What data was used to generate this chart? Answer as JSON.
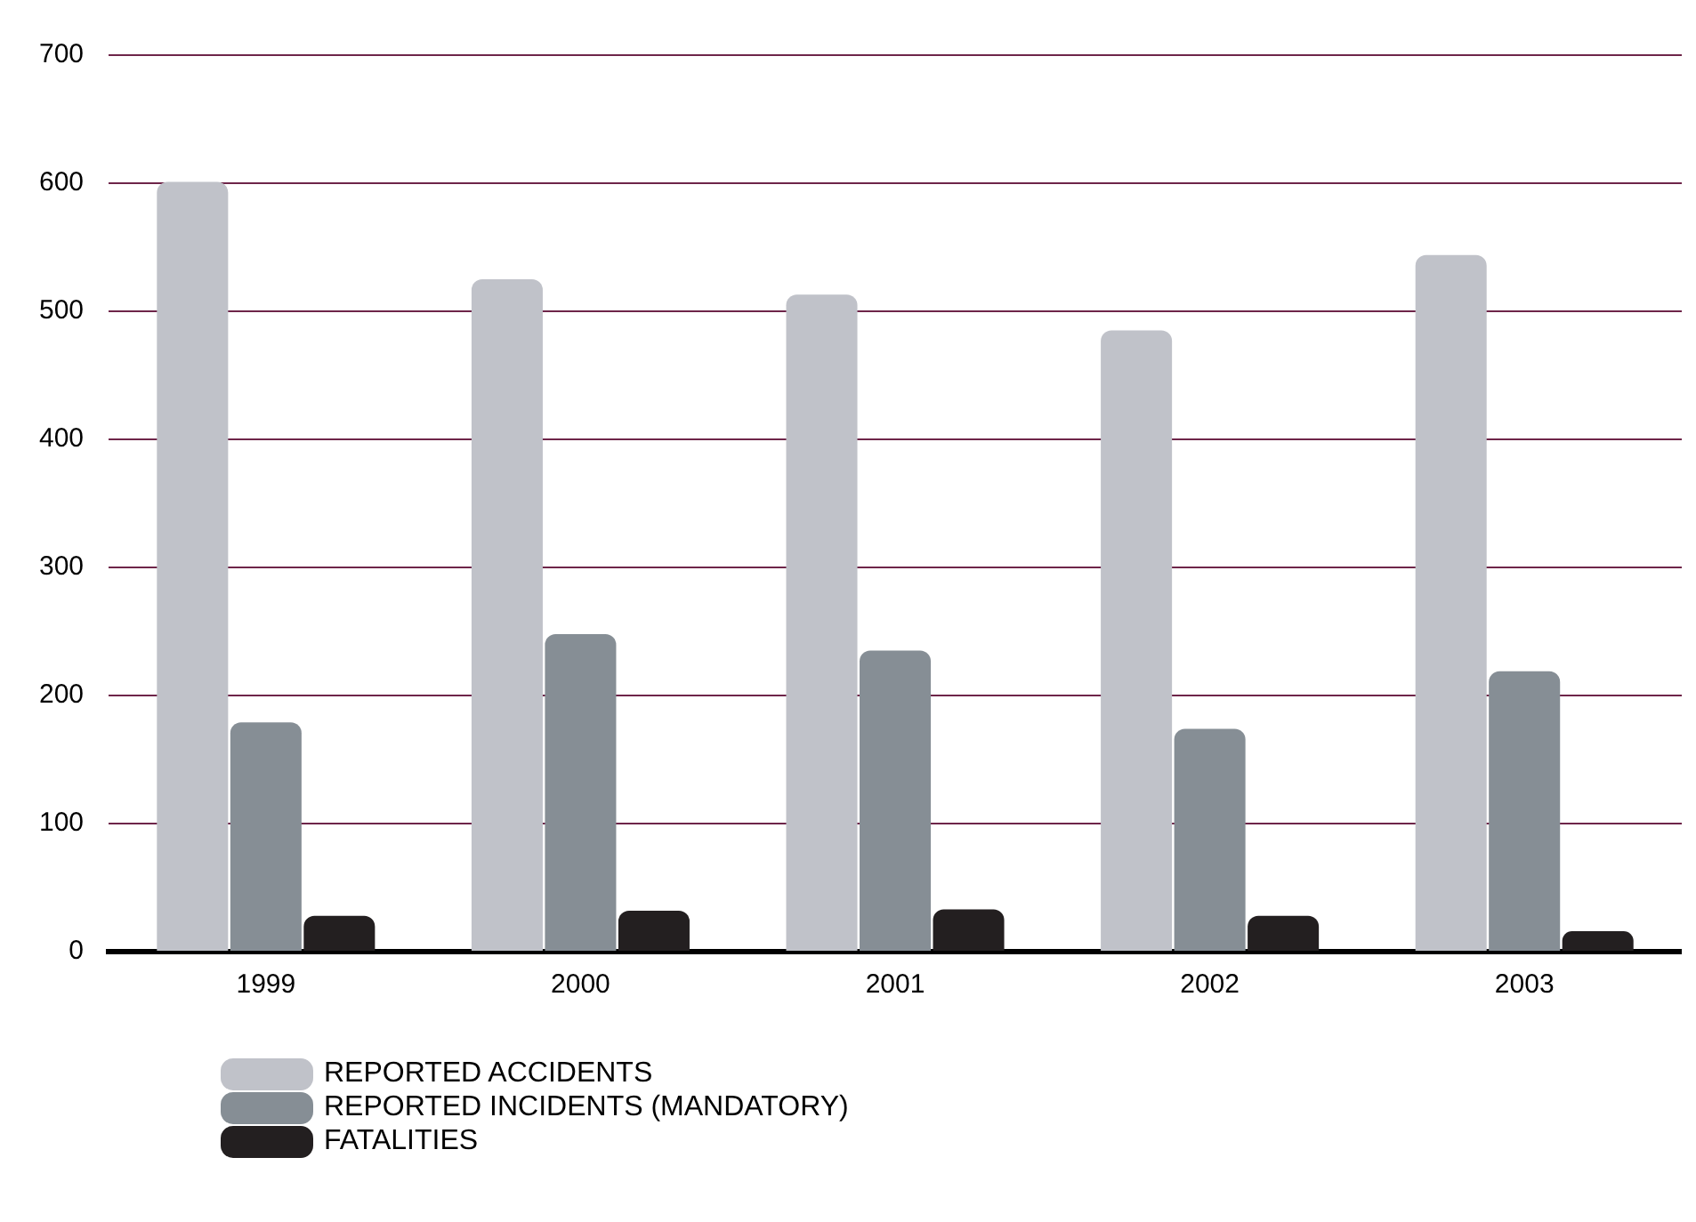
{
  "chart_data": {
    "type": "bar",
    "categories": [
      "1999",
      "2000",
      "2001",
      "2002",
      "2003"
    ],
    "series": [
      {
        "name": "REPORTED ACCIDENTS",
        "color": "#c0c2c9",
        "values": [
          601,
          525,
          513,
          485,
          544
        ]
      },
      {
        "name": "REPORTED INCIDENTS (MANDATORY)",
        "color": "#868e95",
        "values": [
          179,
          248,
          235,
          174,
          219
        ]
      },
      {
        "name": "FATALITIES",
        "color": "#231f20",
        "values": [
          28,
          32,
          33,
          28,
          16
        ]
      }
    ],
    "ylim": [
      0,
      700
    ],
    "yticks": [
      0,
      100,
      200,
      300,
      400,
      500,
      600,
      700
    ],
    "grid": "y",
    "legend": "bottom"
  }
}
